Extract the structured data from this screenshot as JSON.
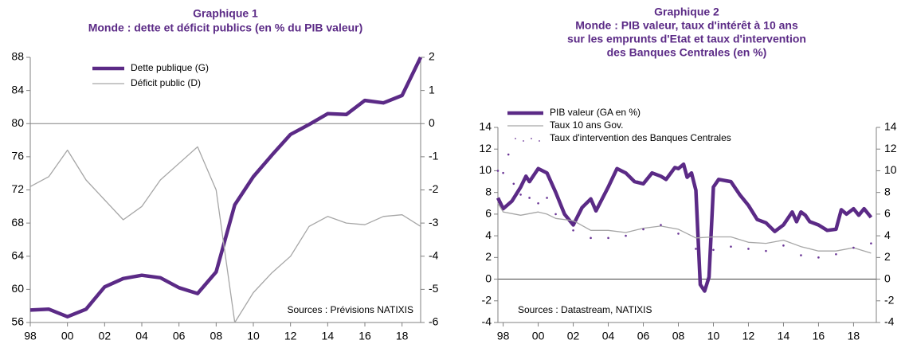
{
  "chart_data": [
    {
      "type": "line",
      "title": [
        "Graphique 1",
        "Monde : dette et déficit publics (en % du PIB valeur)"
      ],
      "annotation": "Sources : Prévisions NATIXIS",
      "xlim": [
        1998,
        2019
      ],
      "xticks": [
        {
          "value": 1998,
          "label": "98"
        },
        {
          "value": 2000,
          "label": "00"
        },
        {
          "value": 2002,
          "label": "02"
        },
        {
          "value": 2004,
          "label": "04"
        },
        {
          "value": 2006,
          "label": "06"
        },
        {
          "value": 2008,
          "label": "08"
        },
        {
          "value": 2010,
          "label": "10"
        },
        {
          "value": 2012,
          "label": "12"
        },
        {
          "value": 2014,
          "label": "14"
        },
        {
          "value": 2016,
          "label": "16"
        },
        {
          "value": 2018,
          "label": "18"
        }
      ],
      "ylim": [
        56,
        88
      ],
      "yticks": [
        56,
        60,
        64,
        68,
        72,
        76,
        80,
        84,
        88
      ],
      "y2lim": [
        -6,
        2
      ],
      "y2ticks": [
        -6,
        -5,
        -4,
        -3,
        -2,
        -1,
        0,
        1,
        2
      ],
      "series": [
        {
          "name": "Dette publique (G)",
          "color": "#5b2a86",
          "style": "thick",
          "x": [
            1998,
            1999,
            2000,
            2001,
            2002,
            2003,
            2004,
            2005,
            2006,
            2007,
            2008,
            2009,
            2010,
            2011,
            2012,
            2013,
            2014,
            2015,
            2016,
            2017,
            2018,
            2019
          ],
          "values": [
            57.5,
            57.6,
            56.7,
            57.6,
            60.3,
            61.3,
            61.7,
            61.4,
            60.2,
            59.5,
            62.1,
            70.2,
            73.6,
            76.2,
            78.7,
            79.9,
            81.2,
            81.1,
            82.8,
            82.5,
            83.4,
            88
          ]
        },
        {
          "name": "Déficit public (D)",
          "color": "#a6a6a6",
          "style": "thin",
          "axis": "y2",
          "x": [
            1998,
            1999,
            2000,
            2001,
            2002,
            2003,
            2004,
            2005,
            2006,
            2007,
            2008,
            2009,
            2010,
            2011,
            2012,
            2013,
            2014,
            2015,
            2016,
            2017,
            2018,
            2019
          ],
          "values": [
            -1.9,
            -1.6,
            -0.8,
            -1.7,
            -2.3,
            -2.9,
            -2.5,
            -1.7,
            -1.2,
            -0.7,
            -2.0,
            -6.0,
            -5.1,
            -4.5,
            -4.0,
            -3.1,
            -2.8,
            -3.0,
            -3.05,
            -2.8,
            -2.75,
            -3.1
          ]
        }
      ]
    },
    {
      "type": "line",
      "title": [
        "Graphique 2",
        "Monde : PIB valeur, taux d'intérêt à 10 ans",
        "sur les emprunts d'Etat et taux d'intervention",
        "des Banques Centrales (en %)"
      ],
      "annotation": "Sources : Datastream, NATIXIS",
      "xlim": [
        1997.7,
        2019.3
      ],
      "xticks": [
        {
          "value": 1998,
          "label": "98"
        },
        {
          "value": 2000,
          "label": "00"
        },
        {
          "value": 2002,
          "label": "02"
        },
        {
          "value": 2004,
          "label": "04"
        },
        {
          "value": 2006,
          "label": "06"
        },
        {
          "value": 2008,
          "label": "08"
        },
        {
          "value": 2010,
          "label": "10"
        },
        {
          "value": 2012,
          "label": "12"
        },
        {
          "value": 2014,
          "label": "14"
        },
        {
          "value": 2016,
          "label": "16"
        },
        {
          "value": 2018,
          "label": "18"
        }
      ],
      "ylim": [
        -4,
        14
      ],
      "yticks": [
        -4,
        -2,
        0,
        2,
        4,
        6,
        8,
        10,
        12,
        14
      ],
      "y2lim": [
        -4,
        14
      ],
      "y2ticks": [
        -4,
        -2,
        0,
        2,
        4,
        6,
        8,
        10,
        12,
        14
      ],
      "series": [
        {
          "name": "PIB valeur (GA en %)",
          "color": "#5b2a86",
          "style": "thick",
          "x": [
            1997.7,
            1998,
            1998.5,
            1999,
            1999.3,
            1999.5,
            2000,
            2000.5,
            2001,
            2001.5,
            2002,
            2002.5,
            2003,
            2003.3,
            2004,
            2004.5,
            2005,
            2005.5,
            2006,
            2006.5,
            2007,
            2007.3,
            2007.8,
            2008,
            2008.3,
            2008.5,
            2008.75,
            2009,
            2009.25,
            2009.5,
            2009.75,
            2010,
            2010.3,
            2011,
            2011.5,
            2012,
            2012.5,
            2013,
            2013.5,
            2014,
            2014.5,
            2014.75,
            2015,
            2015.25,
            2015.5,
            2016,
            2016.5,
            2017,
            2017.3,
            2017.6,
            2018,
            2018.3,
            2018.6,
            2019
          ],
          "values": [
            7.5,
            6.5,
            7.2,
            8.5,
            9.5,
            9.0,
            10.2,
            9.8,
            8.0,
            6.0,
            5.0,
            6.6,
            7.4,
            6.3,
            8.5,
            10.2,
            9.8,
            9.0,
            8.8,
            9.8,
            9.5,
            9.2,
            10.3,
            10.2,
            10.6,
            9.4,
            9.8,
            8.2,
            -0.5,
            -1.1,
            0.2,
            8.5,
            9.2,
            9.0,
            7.8,
            6.8,
            5.5,
            5.2,
            4.4,
            5.0,
            6.2,
            5.3,
            6.2,
            5.9,
            5.3,
            5.0,
            4.5,
            4.6,
            6.4,
            6.0,
            6.5,
            5.9,
            6.5,
            5.7
          ]
        },
        {
          "name": "Taux 10 ans Gov.",
          "color": "#a6a6a6",
          "style": "thin",
          "x": [
            1997.7,
            1998,
            1999,
            2000,
            2000.5,
            2001,
            2002,
            2003,
            2004,
            2005,
            2006,
            2007,
            2008,
            2009,
            2010,
            2011,
            2012,
            2013,
            2014,
            2015,
            2016,
            2017,
            2018,
            2019
          ],
          "values": [
            7.0,
            6.2,
            5.9,
            6.2,
            6.0,
            5.6,
            5.4,
            4.5,
            4.5,
            4.3,
            4.7,
            4.9,
            4.6,
            3.8,
            3.9,
            3.9,
            3.4,
            3.3,
            3.6,
            3.0,
            2.6,
            2.6,
            2.9,
            2.4
          ]
        },
        {
          "name": "Taux d'intervention des Banques Centrales",
          "color": "#6a3596",
          "style": "dots",
          "x": [
            1997.7,
            1998,
            1998.3,
            1998.6,
            1999,
            1999.5,
            2000,
            2000.5,
            2001,
            2002,
            2003,
            2004,
            2005,
            2006,
            2007,
            2008,
            2009,
            2010,
            2011,
            2012,
            2013,
            2014,
            2015,
            2016,
            2017,
            2018,
            2019
          ],
          "values": [
            10,
            9.8,
            11.5,
            8.8,
            7.8,
            7.5,
            7.0,
            7.5,
            6.0,
            4.5,
            3.8,
            3.8,
            4.0,
            4.6,
            5.0,
            4.2,
            2.8,
            2.7,
            3.0,
            2.8,
            2.6,
            3.1,
            2.2,
            2.0,
            2.3,
            2.9,
            3.3
          ]
        }
      ]
    }
  ]
}
